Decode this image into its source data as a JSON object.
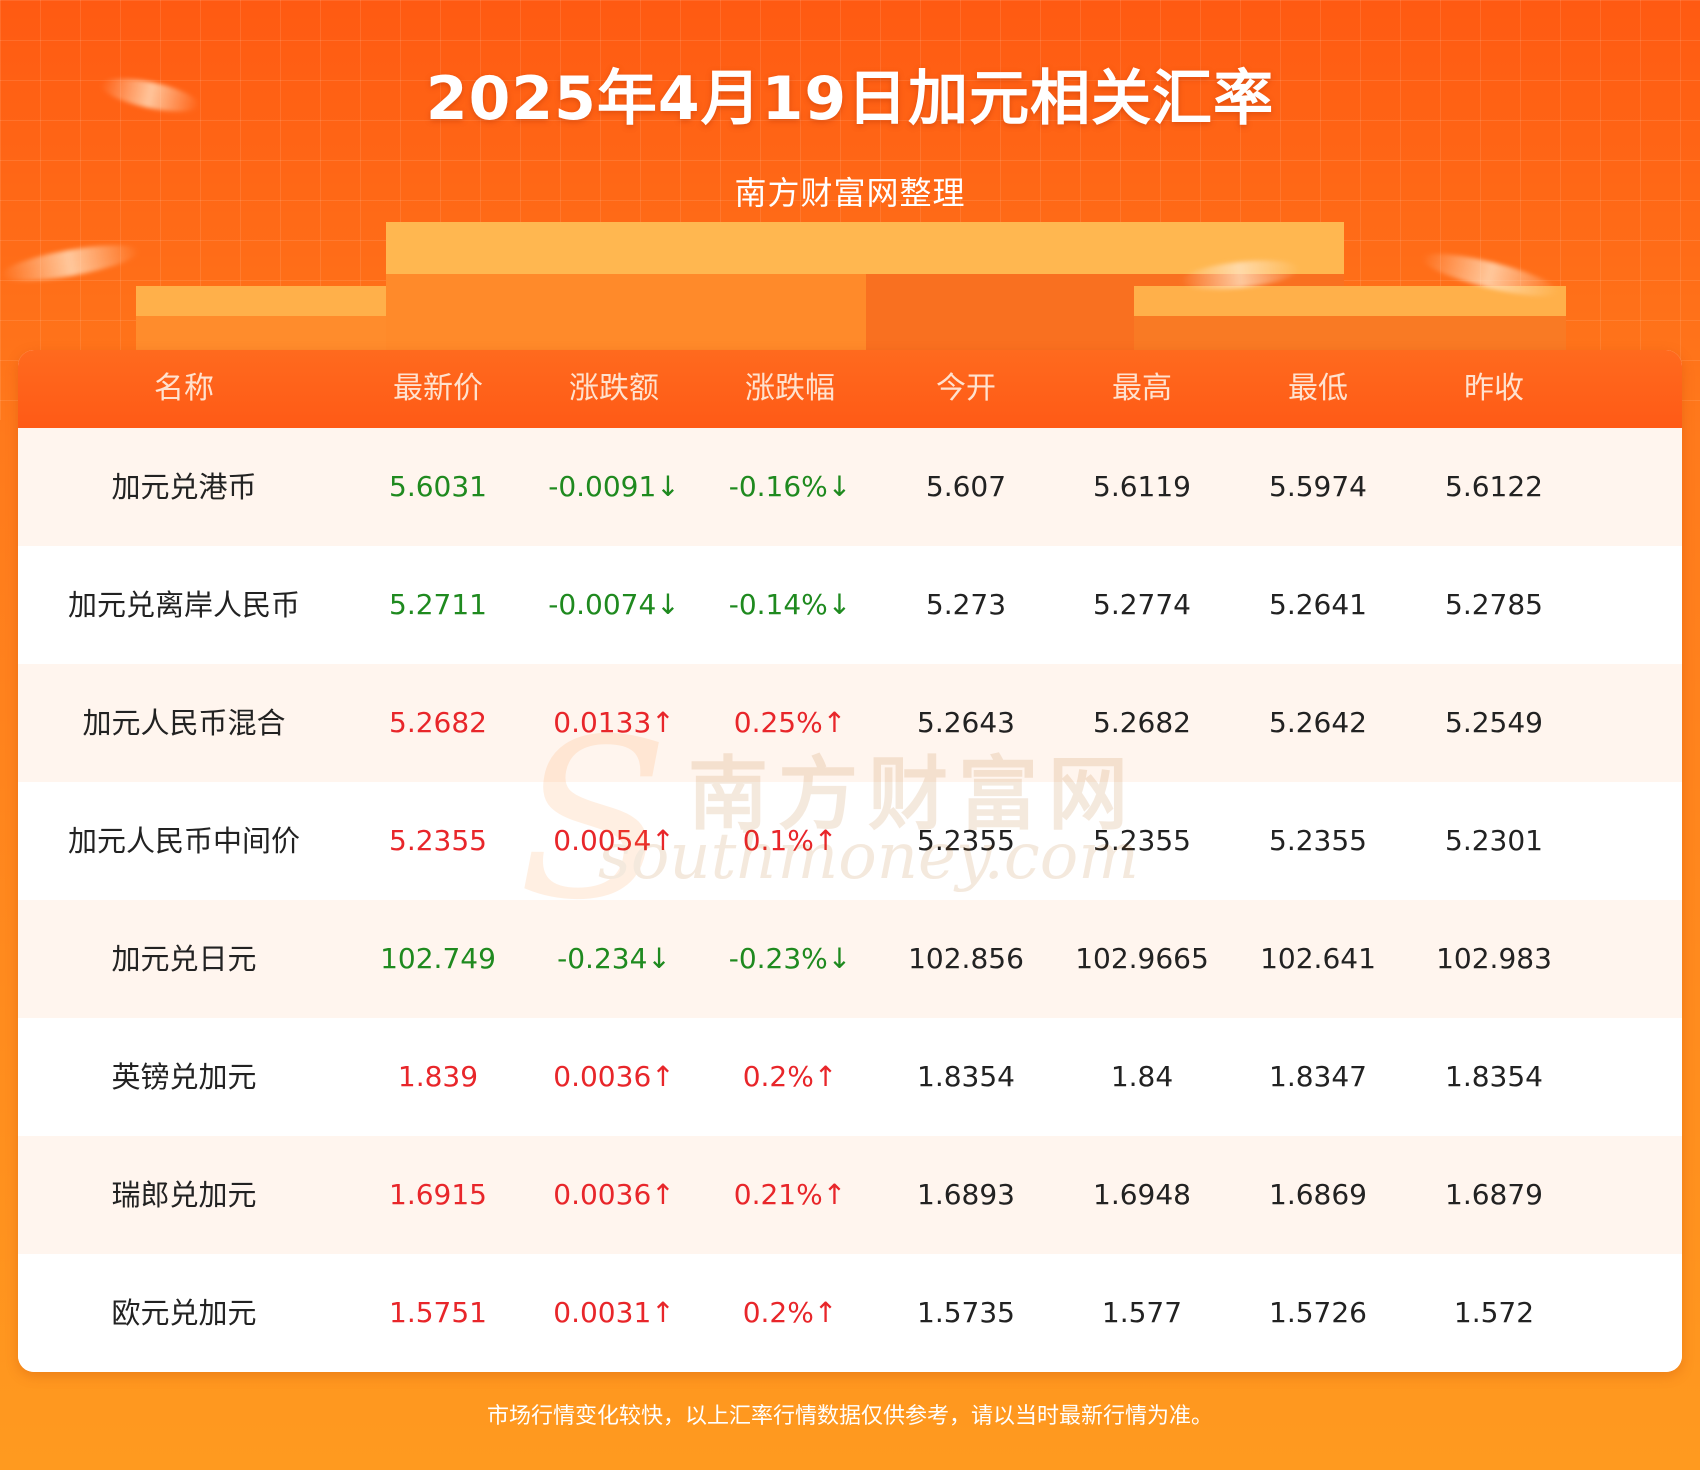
{
  "header": {
    "title": "2025年4月19日加元相关汇率",
    "subtitle": "南方财富网整理"
  },
  "table": {
    "columns": [
      "名称",
      "最新价",
      "涨跌额",
      "涨跌幅",
      "今开",
      "最高",
      "最低",
      "昨收"
    ],
    "rows": [
      {
        "name": "加元兑港币",
        "latest": "5.6031",
        "change": "-0.0091↓",
        "pct": "-0.16%↓",
        "open": "5.607",
        "high": "5.6119",
        "low": "5.5974",
        "prev": "5.6122",
        "trend": "down"
      },
      {
        "name": "加元兑离岸人民币",
        "latest": "5.2711",
        "change": "-0.0074↓",
        "pct": "-0.14%↓",
        "open": "5.273",
        "high": "5.2774",
        "low": "5.2641",
        "prev": "5.2785",
        "trend": "down"
      },
      {
        "name": "加元人民币混合",
        "latest": "5.2682",
        "change": "0.0133↑",
        "pct": "0.25%↑",
        "open": "5.2643",
        "high": "5.2682",
        "low": "5.2642",
        "prev": "5.2549",
        "trend": "up"
      },
      {
        "name": "加元人民币中间价",
        "latest": "5.2355",
        "change": "0.0054↑",
        "pct": "0.1%↑",
        "open": "5.2355",
        "high": "5.2355",
        "low": "5.2355",
        "prev": "5.2301",
        "trend": "up"
      },
      {
        "name": "加元兑日元",
        "latest": "102.749",
        "change": "-0.234↓",
        "pct": "-0.23%↓",
        "open": "102.856",
        "high": "102.9665",
        "low": "102.641",
        "prev": "102.983",
        "trend": "down"
      },
      {
        "name": "英镑兑加元",
        "latest": "1.839",
        "change": "0.0036↑",
        "pct": "0.2%↑",
        "open": "1.8354",
        "high": "1.84",
        "low": "1.8347",
        "prev": "1.8354",
        "trend": "up"
      },
      {
        "name": "瑞郎兑加元",
        "latest": "1.6915",
        "change": "0.0036↑",
        "pct": "0.21%↑",
        "open": "1.6893",
        "high": "1.6948",
        "low": "1.6869",
        "prev": "1.6879",
        "trend": "up"
      },
      {
        "name": "欧元兑加元",
        "latest": "1.5751",
        "change": "0.0031↑",
        "pct": "0.2%↑",
        "open": "1.5735",
        "high": "1.577",
        "low": "1.5726",
        "prev": "1.572",
        "trend": "up"
      }
    ]
  },
  "watermark": {
    "cn": "南方财富网",
    "en": "southmoney.com"
  },
  "footer": {
    "note": "市场行情变化较快，以上汇率行情数据仅供参考，请以当时最新行情为准。"
  },
  "colors": {
    "up": "#e8262a",
    "down": "#1f8a1f",
    "header_bg": "#ff5a16",
    "row_alt": "#fff5ee"
  }
}
